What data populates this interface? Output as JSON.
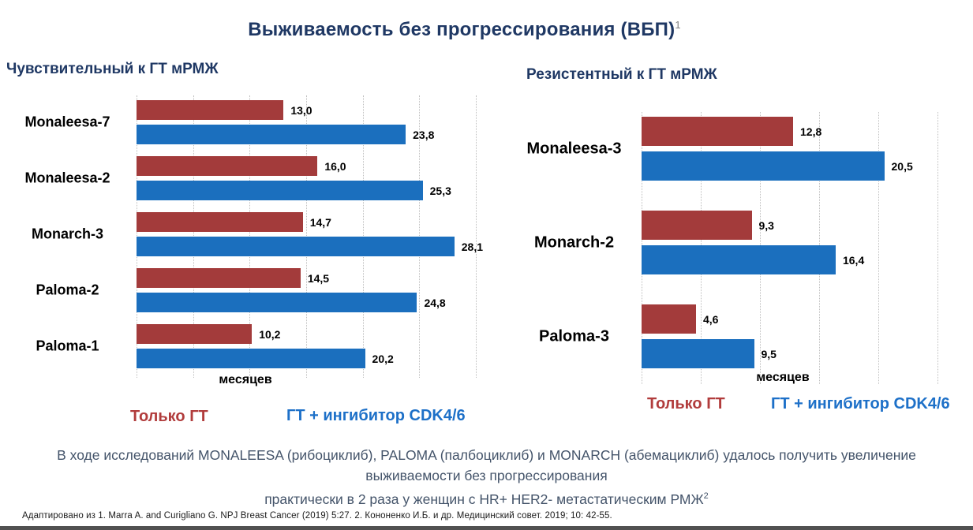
{
  "slide": {
    "title": "Выживаемость без прогрессирования (ВБП)",
    "title_superscript": "1",
    "summary_lines": [
      "В ходе исследований MONALEESA (рибоциклиб), PALOMA (палбоциклиб) и MONARCH (абемациклиб) удалось получить увеличение",
      "выживаемости без прогрессирования",
      "практически в 2 раза у женщин с HR+ HER2- метастатическим РМЖ"
    ],
    "summary_superscript": "2",
    "footnote": "Адаптировано из 1. Marra A. and Curigliano G. NPJ Breast Cancer (2019) 5:27. 2. Кононенко И.Б. и др. Медицинский совет. 2019; 10: 42-55."
  },
  "colors": {
    "title": "#1F3864",
    "bar_red": "#A33B3B",
    "bar_blue": "#1B6FBE",
    "legend_red": "#B13C3C",
    "legend_blue": "#1D70C8",
    "summary_text": "#44546A"
  },
  "chart_data": [
    {
      "type": "bar",
      "orientation": "horizontal",
      "title": "Чувствительный к ГТ мРМЖ",
      "categories": [
        "Monaleesa-7",
        "Monaleesa-2",
        "Monarch-3",
        "Paloma-2",
        "Paloma-1"
      ],
      "series": [
        {
          "name": "Только ГТ",
          "color": "#A33B3B",
          "values": [
            13.0,
            16.0,
            14.7,
            14.5,
            10.2
          ]
        },
        {
          "name": "ГТ + ингибитор CDK4/6",
          "color": "#1B6FBE",
          "values": [
            23.8,
            25.3,
            28.1,
            24.8,
            20.2
          ]
        }
      ],
      "xlabel": "месяцев",
      "xlim": [
        0,
        30
      ],
      "gridline_step": 5,
      "grid": true,
      "legend_position": "bottom",
      "value_label_format": "comma-decimal-1"
    },
    {
      "type": "bar",
      "orientation": "horizontal",
      "title": "Резистентный к ГТ мРМЖ",
      "categories": [
        "Monaleesa-3",
        "Monarch-2",
        "Paloma-3"
      ],
      "series": [
        {
          "name": "Только ГТ",
          "color": "#A33B3B",
          "values": [
            12.8,
            9.3,
            4.6
          ]
        },
        {
          "name": "ГТ + ингибитор CDK4/6",
          "color": "#1B6FBE",
          "values": [
            20.5,
            16.4,
            9.5
          ]
        }
      ],
      "xlabel": "месяцев",
      "xlim": [
        0,
        25
      ],
      "gridline_step": 5,
      "grid": true,
      "legend_position": "bottom",
      "value_label_format": "comma-decimal-1"
    }
  ]
}
